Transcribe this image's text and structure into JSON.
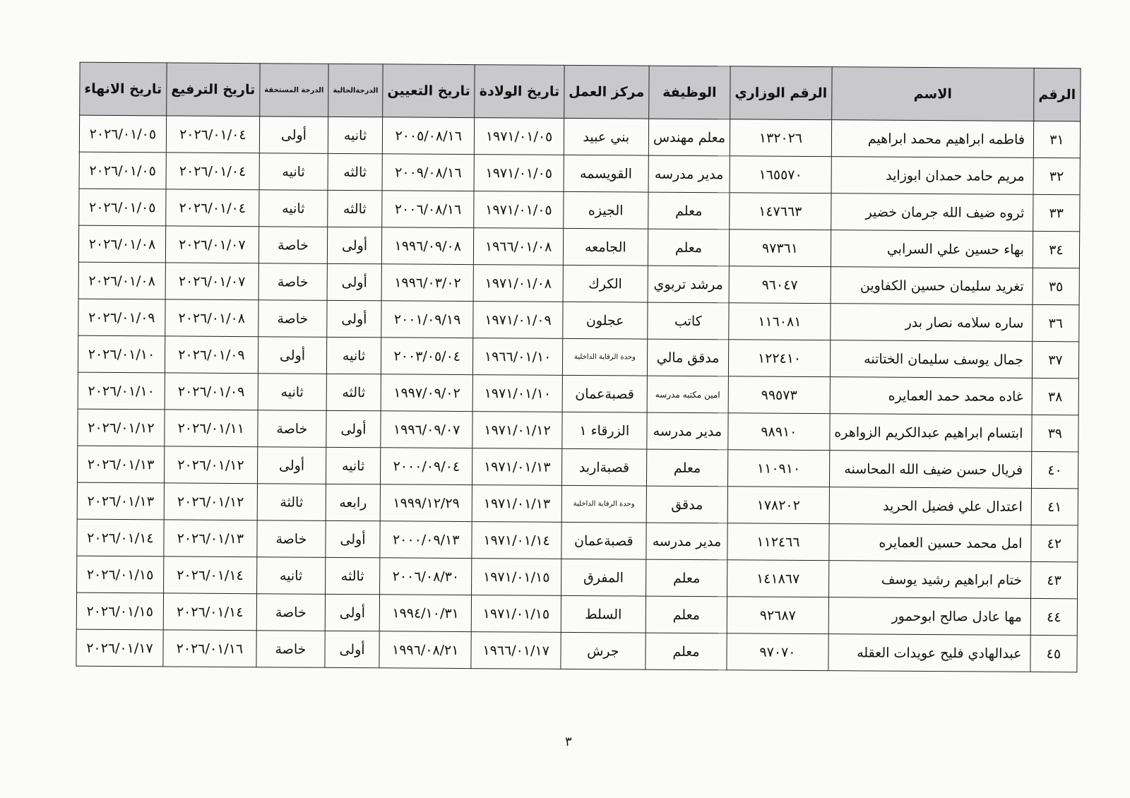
{
  "table": {
    "headers": [
      "الرقم",
      "الاسم",
      "الرقم الوزاري",
      "الوظيفة",
      "مركز العمل",
      "تاريخ الولادة",
      "تاريخ التعيين",
      "الدرجةالحالية",
      "الدرجة المستحقة",
      "تاريخ الترفيع",
      "تاريخ الانهاء"
    ],
    "rows": [
      [
        "٣١",
        "فاطمه ابراهيم محمد ابراهيم",
        "١٣٢٠٢٦",
        "معلم مهندس",
        "بني عبيد",
        "١٩٧١/٠١/٠٥",
        "٢٠٠٥/٠٨/١٦",
        "ثانيه",
        "أولى",
        "٢٠٢٦/٠١/٠٤",
        "٢٠٢٦/٠١/٠٥"
      ],
      [
        "٣٢",
        "مريم حامد حمدان ابوزايد",
        "١٦٥٥٧٠",
        "مدير مدرسه",
        "القويسمه",
        "١٩٧١/٠١/٠٥",
        "٢٠٠٩/٠٨/١٦",
        "ثالثه",
        "ثانيه",
        "٢٠٢٦/٠١/٠٤",
        "٢٠٢٦/٠١/٠٥"
      ],
      [
        "٣٣",
        "ثروه ضيف الله جرمان خضير",
        "١٤٧٦٦٣",
        "معلم",
        "الجيزه",
        "١٩٧١/٠١/٠٥",
        "٢٠٠٦/٠٨/١٦",
        "ثالثه",
        "ثانيه",
        "٢٠٢٦/٠١/٠٤",
        "٢٠٢٦/٠١/٠٥"
      ],
      [
        "٣٤",
        "بهاء حسين علي السرابي",
        "٩٧٣٦١",
        "معلم",
        "الجامعه",
        "١٩٦٦/٠١/٠٨",
        "١٩٩٦/٠٩/٠٨",
        "أولى",
        "خاصة",
        "٢٠٢٦/٠١/٠٧",
        "٢٠٢٦/٠١/٠٨"
      ],
      [
        "٣٥",
        "تغريد سليمان حسين الكفاوين",
        "٩٦٠٤٧",
        "مرشد تربوي",
        "الكرك",
        "١٩٧١/٠١/٠٨",
        "١٩٩٦/٠٣/٠٢",
        "أولى",
        "خاصة",
        "٢٠٢٦/٠١/٠٧",
        "٢٠٢٦/٠١/٠٨"
      ],
      [
        "٣٦",
        "ساره سلامه نصار بدر",
        "١١٦٠٨١",
        "كاتب",
        "عجلون",
        "١٩٧١/٠١/٠٩",
        "٢٠٠١/٠٩/١٩",
        "أولى",
        "خاصة",
        "٢٠٢٦/٠١/٠٨",
        "٢٠٢٦/٠١/٠٩"
      ],
      [
        "٣٧",
        "جمال يوسف سليمان الختاتنه",
        "١٢٢٤١٠",
        "مدقق مالي",
        "وحدة الرقابة الداخلية",
        "١٩٦٦/٠١/١٠",
        "٢٠٠٣/٠٥/٠٤",
        "ثانيه",
        "أولى",
        "٢٠٢٦/٠١/٠٩",
        "٢٠٢٦/٠١/١٠"
      ],
      [
        "٣٨",
        "غاده محمد حمد العمايره",
        "٩٩٥٧٣",
        "امين مكتبه مدرسه",
        "قصبةعمان",
        "١٩٧١/٠١/١٠",
        "١٩٩٧/٠٩/٠٢",
        "ثالثه",
        "ثانيه",
        "٢٠٢٦/٠١/٠٩",
        "٢٠٢٦/٠١/١٠"
      ],
      [
        "٣٩",
        "ابتسام ابراهيم عبدالكريم الزواهره",
        "٩٨٩١٠",
        "مدير مدرسه",
        "الزرقاء ١",
        "١٩٧١/٠١/١٢",
        "١٩٩٦/٠٩/٠٧",
        "أولى",
        "خاصة",
        "٢٠٢٦/٠١/١١",
        "٢٠٢٦/٠١/١٢"
      ],
      [
        "٤٠",
        "فريال حسن ضيف الله المحاسنه",
        "١١٠٩١٠",
        "معلم",
        "قصبةاربد",
        "١٩٧١/٠١/١٣",
        "٢٠٠٠/٠٩/٠٤",
        "ثانيه",
        "أولى",
        "٢٠٢٦/٠١/١٢",
        "٢٠٢٦/٠١/١٣"
      ],
      [
        "٤١",
        "اعتدال علي فضيل الحريد",
        "١٧٨٢٠٢",
        "مدقق",
        "وحدة الرقابة الداخلية",
        "١٩٧١/٠١/١٣",
        "١٩٩٩/١٢/٢٩",
        "رابعه",
        "ثالثة",
        "٢٠٢٦/٠١/١٢",
        "٢٠٢٦/٠١/١٣"
      ],
      [
        "٤٢",
        "امل محمد حسين العمايره",
        "١١٢٤٦٦",
        "مدير مدرسه",
        "قصبةعمان",
        "١٩٧١/٠١/١٤",
        "٢٠٠٠/٠٩/١٣",
        "أولى",
        "خاصة",
        "٢٠٢٦/٠١/١٣",
        "٢٠٢٦/٠١/١٤"
      ],
      [
        "٤٣",
        "ختام ابراهيم رشيد يوسف",
        "١٤١٨٦٧",
        "معلم",
        "المفرق",
        "١٩٧١/٠١/١٥",
        "٢٠٠٦/٠٨/٣٠",
        "ثالثه",
        "ثانيه",
        "٢٠٢٦/٠١/١٤",
        "٢٠٢٦/٠١/١٥"
      ],
      [
        "٤٤",
        "مها عادل صالح ابوحمور",
        "٩٢٦٨٧",
        "معلم",
        "السلط",
        "١٩٧١/٠١/١٥",
        "١٩٩٤/١٠/٣١",
        "أولى",
        "خاصة",
        "٢٠٢٦/٠١/١٤",
        "٢٠٢٦/٠١/١٥"
      ],
      [
        "٤٥",
        "عبدالهادي فليح عويدات العقله",
        "٩٧٠٧٠",
        "معلم",
        "جرش",
        "١٩٦٦/٠١/١٧",
        "١٩٩٦/٠٨/٢١",
        "أولى",
        "خاصة",
        "٢٠٢٦/٠١/١٦",
        "٢٠٢٦/٠١/١٧"
      ]
    ]
  },
  "page_number": "٣"
}
